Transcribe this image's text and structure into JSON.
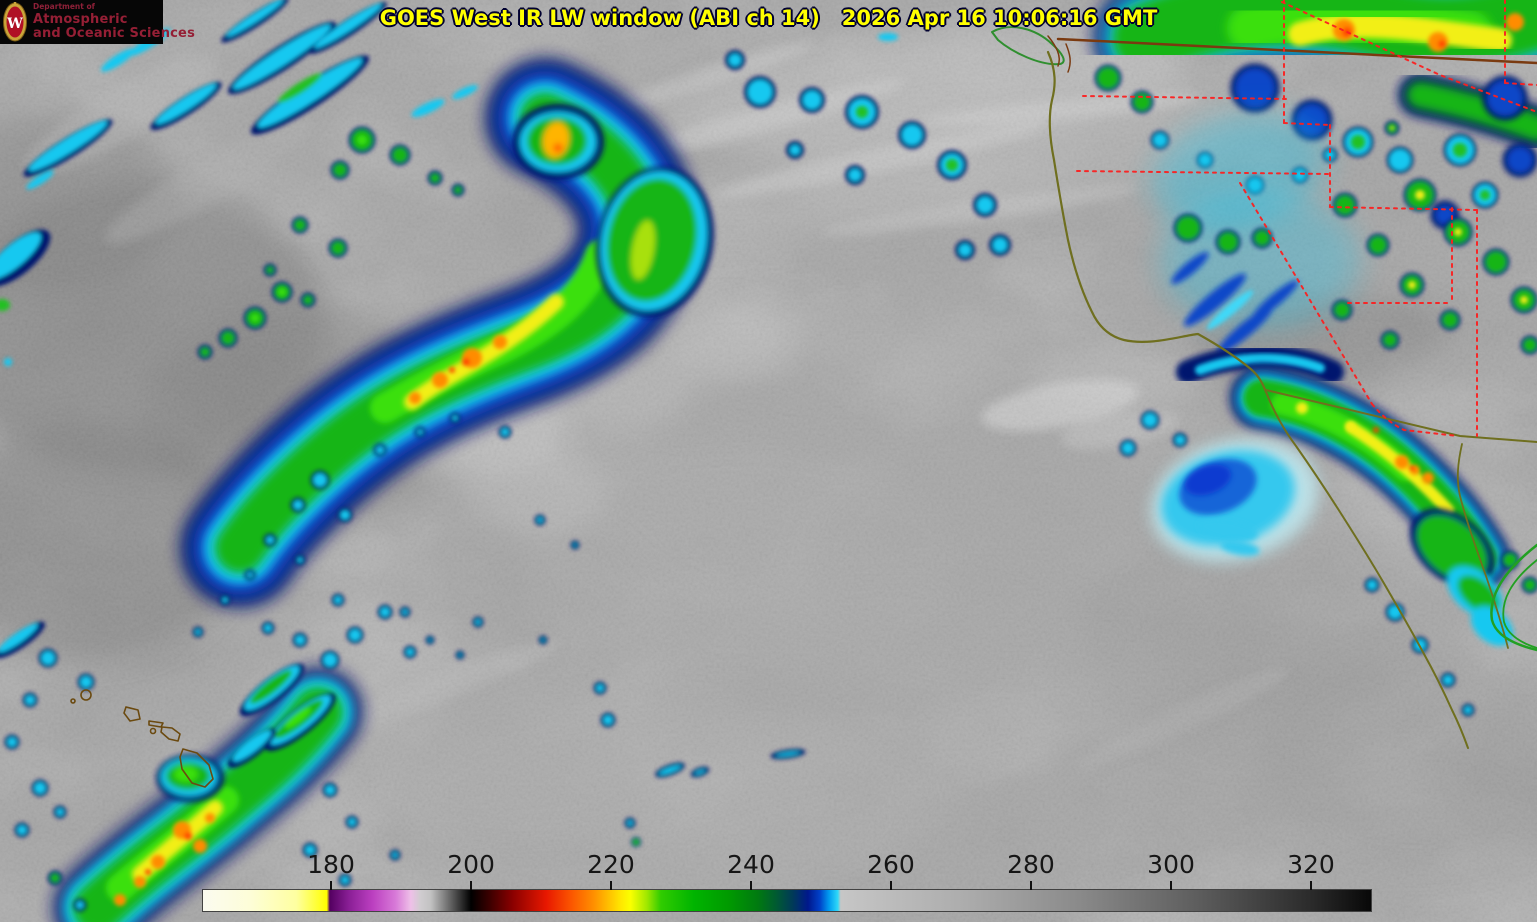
{
  "branding": {
    "org_small": "Department of",
    "org_line1": "Atmospheric",
    "org_line2": "and Oceanic Sciences",
    "crest_letter": "W",
    "crest_red": "#b01125",
    "crest_gold": "#caa53a",
    "text_color": "#951f35",
    "background": "#060606"
  },
  "header": {
    "title": "GOES West IR LW window (ABI ch 14)   2026 Apr 16 10:06:16 GMT",
    "title_color": "#ffff00",
    "outline_color": "#000030"
  },
  "colorbar": {
    "ticks": [
      {
        "label": "180",
        "pos_pct": 10.96
      },
      {
        "label": "200",
        "pos_pct": 22.95
      },
      {
        "label": "220",
        "pos_pct": 34.93
      },
      {
        "label": "240",
        "pos_pct": 46.92
      },
      {
        "label": "260",
        "pos_pct": 58.9
      },
      {
        "label": "280",
        "pos_pct": 70.89
      },
      {
        "label": "300",
        "pos_pct": 82.88
      },
      {
        "label": "320",
        "pos_pct": 94.86
      }
    ],
    "gradient_stops": [
      {
        "pos_pct": 0,
        "color": "#fbfbf0"
      },
      {
        "pos_pct": 4,
        "color": "#fdfdd8"
      },
      {
        "pos_pct": 8,
        "color": "#feffa0"
      },
      {
        "pos_pct": 10.6,
        "color": "#ffff00"
      },
      {
        "pos_pct": 10.85,
        "color": "#530060"
      },
      {
        "pos_pct": 12.5,
        "color": "#8a1f96"
      },
      {
        "pos_pct": 14.5,
        "color": "#bb3fc0"
      },
      {
        "pos_pct": 16.5,
        "color": "#d87ad8"
      },
      {
        "pos_pct": 17.8,
        "color": "#eec0e8"
      },
      {
        "pos_pct": 18.6,
        "color": "#d0ccd0"
      },
      {
        "pos_pct": 19.5,
        "color": "#c2c2c2"
      },
      {
        "pos_pct": 22.95,
        "color": "#000000"
      },
      {
        "pos_pct": 24.5,
        "color": "#3a0000"
      },
      {
        "pos_pct": 26.5,
        "color": "#8a0000"
      },
      {
        "pos_pct": 29.4,
        "color": "#e81800"
      },
      {
        "pos_pct": 31.5,
        "color": "#fb5500"
      },
      {
        "pos_pct": 33.5,
        "color": "#ff9100"
      },
      {
        "pos_pct": 35.8,
        "color": "#ffe800"
      },
      {
        "pos_pct": 36.6,
        "color": "#fbff00"
      },
      {
        "pos_pct": 38,
        "color": "#a0e800"
      },
      {
        "pos_pct": 39.2,
        "color": "#30cc00"
      },
      {
        "pos_pct": 42,
        "color": "#00b400"
      },
      {
        "pos_pct": 45,
        "color": "#009a00"
      },
      {
        "pos_pct": 47.5,
        "color": "#007a10"
      },
      {
        "pos_pct": 49,
        "color": "#005c30"
      },
      {
        "pos_pct": 50.5,
        "color": "#003a58"
      },
      {
        "pos_pct": 51.8,
        "color": "#00188c"
      },
      {
        "pos_pct": 52.8,
        "color": "#0040c8"
      },
      {
        "pos_pct": 53.6,
        "color": "#009cf0"
      },
      {
        "pos_pct": 54.35,
        "color": "#2fd8f8"
      },
      {
        "pos_pct": 54.6,
        "color": "#c6c6c6"
      },
      {
        "pos_pct": 65,
        "color": "#adadad"
      },
      {
        "pos_pct": 75,
        "color": "#8a8a8a"
      },
      {
        "pos_pct": 85,
        "color": "#5e5e5e"
      },
      {
        "pos_pct": 95,
        "color": "#2a2a2a"
      },
      {
        "pos_pct": 100,
        "color": "#080808"
      }
    ]
  },
  "map_colors": {
    "state_border": "#fb2020",
    "us_coastline": "#6f6f1f",
    "international_border": "#7a3a10",
    "vancouver_island": "#2f8f2f",
    "mexico_coastline": "#22a022",
    "island_outline": "#6b4a10"
  }
}
